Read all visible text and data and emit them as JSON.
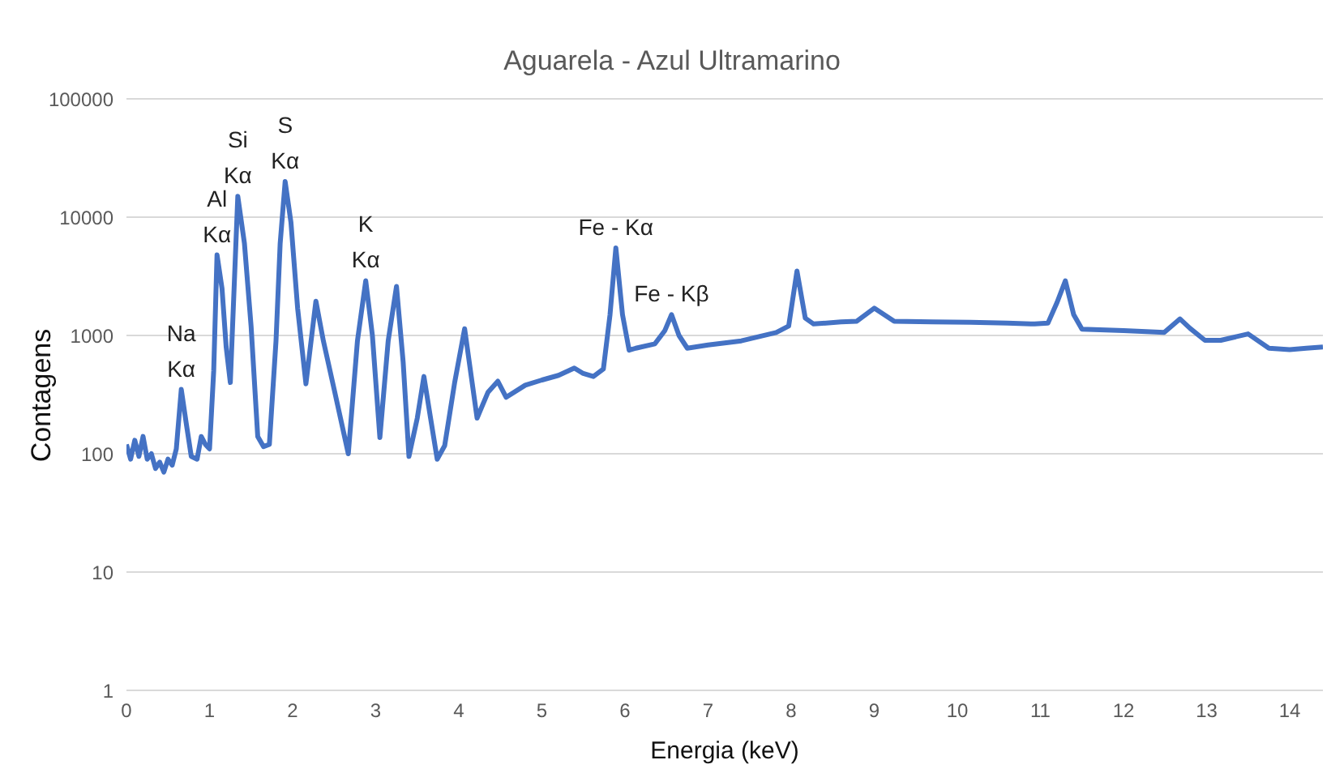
{
  "chart_data": {
    "type": "line",
    "title": "Aguarela - Azul Ultramarino",
    "xlabel": "Energia (keV)",
    "ylabel": "Contagens",
    "x": [
      0,
      0.05,
      0.1,
      0.15,
      0.2,
      0.25,
      0.3,
      0.35,
      0.4,
      0.45,
      0.5,
      0.55,
      0.6,
      0.66,
      0.72,
      0.78,
      0.85,
      0.9,
      0.95,
      1.0,
      1.05,
      1.09,
      1.15,
      1.2,
      1.25,
      1.34,
      1.42,
      1.5,
      1.58,
      1.65,
      1.72,
      1.8,
      1.85,
      1.91,
      1.98,
      2.06,
      2.16,
      2.28,
      2.37,
      2.5,
      2.67,
      2.78,
      2.88,
      2.96,
      3.05,
      3.15,
      3.25,
      3.33,
      3.4,
      3.5,
      3.58,
      3.66,
      3.74,
      3.83,
      3.95,
      4.07,
      4.15,
      4.22,
      4.35,
      4.47,
      4.57,
      4.8,
      5.0,
      5.2,
      5.39,
      5.49,
      5.62,
      5.74,
      5.82,
      5.89,
      5.97,
      6.05,
      6.13,
      6.36,
      6.48,
      6.56,
      6.65,
      6.75,
      7.0,
      7.4,
      7.82,
      7.97,
      8.07,
      8.17,
      8.27,
      8.6,
      8.79,
      9.0,
      9.24,
      9.7,
      10.16,
      10.6,
      10.93,
      11.09,
      11.2,
      11.3,
      11.4,
      11.5,
      12.0,
      12.49,
      12.68,
      12.8,
      12.98,
      13.17,
      13.5,
      13.75,
      14.0,
      14.2,
      14.4
    ],
    "series": [
      {
        "color": "#4472c4",
        "values": [
          120,
          90,
          130,
          95,
          140,
          90,
          100,
          75,
          85,
          70,
          90,
          80,
          110,
          350,
          180,
          95,
          90,
          140,
          120,
          110,
          500,
          4800,
          2500,
          800,
          400,
          15000,
          6000,
          1200,
          140,
          115,
          120,
          900,
          6000,
          20000,
          9000,
          1700,
          390,
          1950,
          900,
          350,
          100,
          900,
          2900,
          1000,
          137,
          900,
          2600,
          600,
          95,
          200,
          450,
          200,
          90,
          117,
          400,
          1140,
          450,
          200,
          330,
          410,
          300,
          380,
          420,
          460,
          530,
          480,
          450,
          520,
          1500,
          5500,
          1500,
          750,
          780,
          850,
          1100,
          1500,
          1000,
          780,
          830,
          900,
          1060,
          1200,
          3500,
          1400,
          1250,
          1300,
          1320,
          1700,
          1320,
          1300,
          1290,
          1270,
          1250,
          1270,
          1900,
          2900,
          1500,
          1130,
          1100,
          1060,
          1380,
          1150,
          910,
          910,
          1030,
          780,
          760,
          780,
          800
        ]
      }
    ],
    "xlim": [
      0,
      14.4
    ],
    "xticks": [
      0,
      1,
      2,
      3,
      4,
      5,
      6,
      7,
      8,
      9,
      10,
      11,
      12,
      13,
      14
    ],
    "ylim": [
      1,
      100000
    ],
    "yticks": [
      1,
      10,
      100,
      1000,
      10000,
      100000
    ],
    "log": true,
    "grid": "y",
    "marker": "none",
    "line_style": "solid",
    "legend": false,
    "annotations": [
      {
        "text": "Na\nKα",
        "x": 0.66,
        "y": 350
      },
      {
        "text": "Al\nKα",
        "x": 1.09,
        "y": 4800
      },
      {
        "text": "Si\nKα",
        "x": 1.34,
        "y": 15000
      },
      {
        "text": "S\nKα",
        "x": 1.91,
        "y": 20000
      },
      {
        "text": "K\nKα",
        "x": 2.88,
        "y": 2900
      },
      {
        "text": "Fe - Kα",
        "x": 5.89,
        "y": 5500
      },
      {
        "text": "Fe - Kβ",
        "x": 6.56,
        "y": 1500
      }
    ]
  }
}
